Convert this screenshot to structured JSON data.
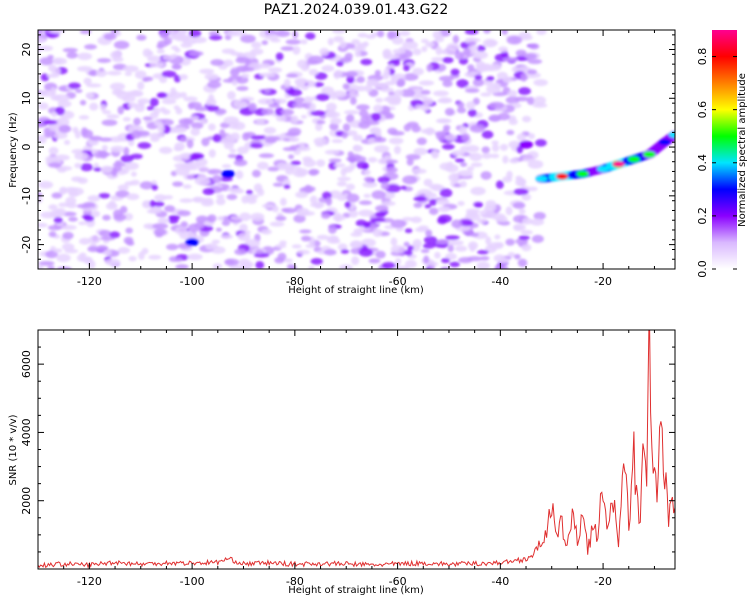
{
  "title": "PAZ1.2024.039.01.43.G22",
  "chart_data": [
    {
      "type": "heatmap",
      "xlabel": "Height of straight line (km)",
      "ylabel": "Frequency (Hz)",
      "xlim": [
        -130,
        -6
      ],
      "ylim": [
        -25,
        24
      ],
      "xticks": [
        -120,
        -100,
        -80,
        -60,
        -40,
        -20
      ],
      "yticks": [
        -20,
        -10,
        0,
        10,
        20
      ],
      "colorbar": {
        "label": "Normalized spectral amplitude",
        "range": [
          0,
          0.9
        ],
        "ticks": [
          0.0,
          0.2,
          0.4,
          0.6,
          0.8
        ],
        "colors": [
          "#ffffff",
          "#d9b8ff",
          "#8a00ff",
          "#0000ff",
          "#00e5ff",
          "#00ff00",
          "#ffff00",
          "#ff7f00",
          "#ff0000",
          "#ff0090"
        ]
      },
      "noise_band": {
        "x_range": [
          -130,
          -32
        ],
        "y_range": [
          -25,
          24
        ],
        "level": 0.15
      },
      "signal_track": {
        "points": [
          {
            "x": -32,
            "y": -6.5,
            "amp": 0.4
          },
          {
            "x": -28,
            "y": -6.0,
            "amp": 0.8
          },
          {
            "x": -24,
            "y": -5.5,
            "amp": 0.5
          },
          {
            "x": -20,
            "y": -4.5,
            "amp": 0.4
          },
          {
            "x": -17,
            "y": -3.5,
            "amp": 0.85
          },
          {
            "x": -14,
            "y": -2.5,
            "amp": 0.5
          },
          {
            "x": -11,
            "y": -1.5,
            "amp": 0.45
          },
          {
            "x": -8,
            "y": 1.0,
            "amp": 0.35
          },
          {
            "x": -6,
            "y": 2.5,
            "amp": 0.4
          }
        ],
        "secondary": [
          {
            "x": -35,
            "y": 0.5,
            "amp": 0.2
          },
          {
            "x": -93,
            "y": -5.5,
            "amp": 0.25
          },
          {
            "x": -100,
            "y": -19.5,
            "amp": 0.25
          }
        ]
      }
    },
    {
      "type": "line",
      "xlabel": "Height of straight line (km)",
      "ylabel": "SNR (10 * v/v)",
      "xlim": [
        -130,
        -6
      ],
      "ylim": [
        0,
        7000
      ],
      "xticks": [
        -120,
        -100,
        -80,
        -60,
        -40,
        -20
      ],
      "yticks": [
        2000,
        4000,
        6000
      ],
      "color": "#e03030",
      "series": [
        {
          "x": [
            -130,
            -125,
            -120,
            -115,
            -110,
            -105,
            -100,
            -95,
            -93,
            -90,
            -85,
            -80,
            -75,
            -70,
            -65,
            -60,
            -55,
            -50,
            -45,
            -40,
            -37,
            -35,
            -33,
            -31,
            -30,
            -29,
            -28,
            -27,
            -26,
            -25,
            -24,
            -23,
            -22,
            -21,
            -20,
            -19,
            -18,
            -17,
            -16,
            -15,
            -14,
            -13,
            -12,
            -11.5,
            -11,
            -10.5,
            -10,
            -9.5,
            -9,
            -8,
            -7,
            -6
          ],
          "values": [
            100,
            150,
            120,
            200,
            140,
            180,
            170,
            200,
            300,
            150,
            180,
            140,
            160,
            150,
            120,
            150,
            170,
            140,
            160,
            180,
            250,
            300,
            500,
            1200,
            1700,
            900,
            1300,
            700,
            1500,
            800,
            1800,
            600,
            1200,
            900,
            2500,
            1200,
            1800,
            900,
            2800,
            1500,
            3200,
            1300,
            3400,
            2200,
            7000,
            2800,
            3500,
            1800,
            4000,
            2500,
            1500,
            1800
          ]
        }
      ]
    }
  ]
}
